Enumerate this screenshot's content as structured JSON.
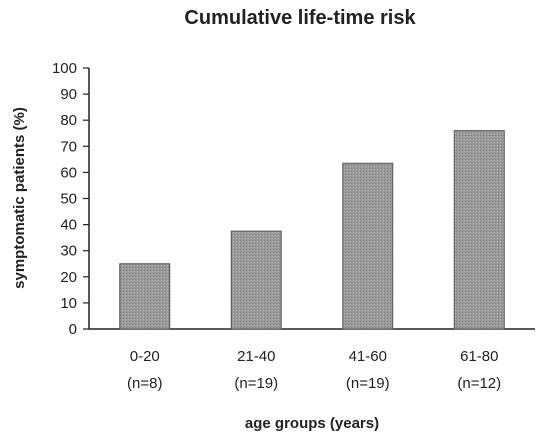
{
  "chart_data": {
    "type": "bar",
    "title": "Cumulative life-time risk",
    "xlabel": "age groups (years)",
    "ylabel": "symptomatic patients (%)",
    "ylim": [
      0,
      100
    ],
    "yticks": [
      0,
      10,
      20,
      30,
      40,
      50,
      60,
      70,
      80,
      90,
      100
    ],
    "categories": [
      "0-20",
      "21-40",
      "41-60",
      "61-80"
    ],
    "category_notes": [
      "(n=8)",
      "(n=19)",
      "(n=19)",
      "(n=12)"
    ],
    "values": [
      25,
      37.5,
      63.5,
      76
    ],
    "bar_color": "#9a9a9a",
    "grid": false,
    "legend": "none"
  }
}
